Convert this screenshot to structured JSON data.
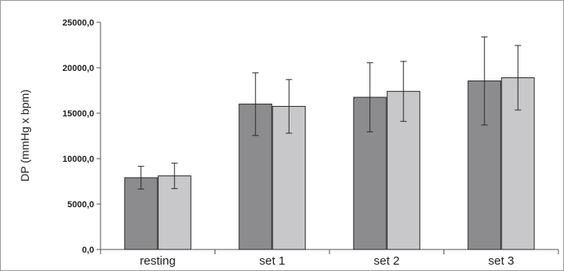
{
  "chart_data": {
    "type": "bar",
    "title": "",
    "xlabel": "",
    "ylabel": "DP (mmHg x bpm)",
    "ylim": [
      0,
      25000
    ],
    "yticks": [
      "0,0",
      "5000,0",
      "10000,0",
      "15000,0",
      "20000,0",
      "25000,0"
    ],
    "categories": [
      "resting",
      "set 1",
      "set 2",
      "set 3"
    ],
    "series": [
      {
        "color": "#8c8c8e",
        "values": [
          7900,
          16000,
          16750,
          18550
        ],
        "errors": [
          1250,
          3450,
          3800,
          4850
        ]
      },
      {
        "color": "#c8c8ca",
        "values": [
          8100,
          15750,
          17400,
          18900
        ],
        "errors": [
          1400,
          2950,
          3300,
          3550
        ]
      }
    ],
    "grid": false,
    "legend": "none"
  }
}
